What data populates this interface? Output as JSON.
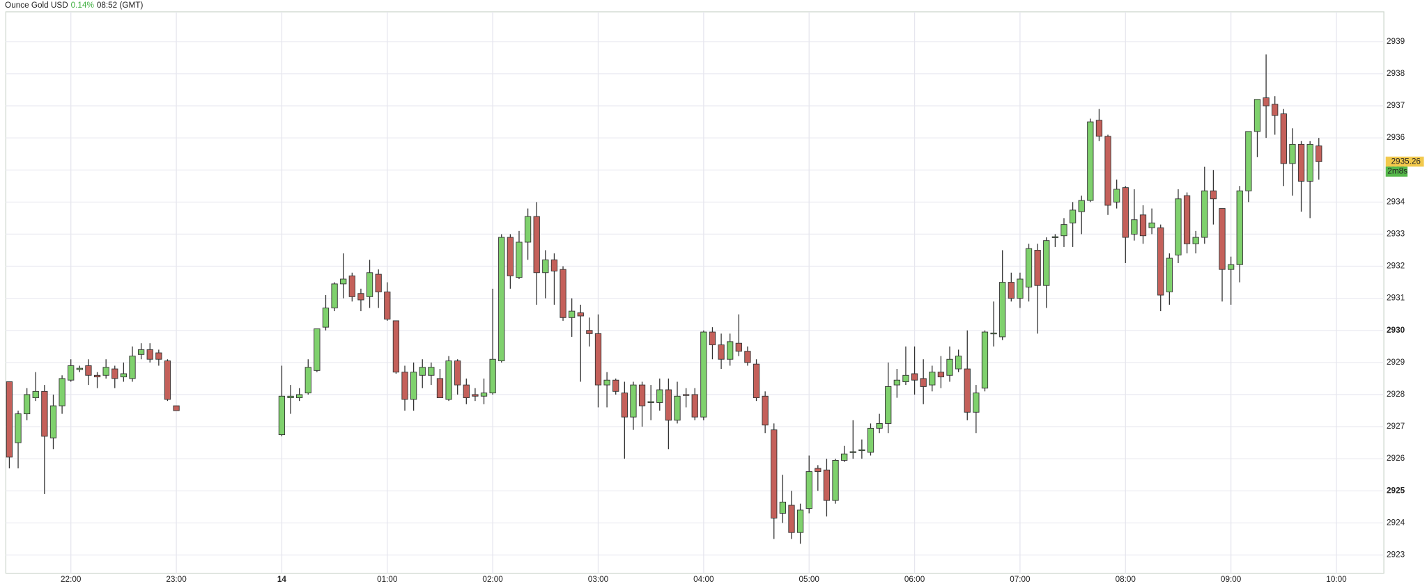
{
  "chart_data": {
    "type": "candlestick",
    "title": "Ounce Gold USD",
    "change": "0.14%",
    "time": "08:52 (GMT)",
    "last_price": 2935.26,
    "countdown": "2m8s",
    "up_color": "#7fd16d",
    "down_color": "#c4605a",
    "change_color": "#3fae3f",
    "grid": true,
    "x": [
      "21:25",
      "21:30",
      "21:35",
      "21:40",
      "21:45",
      "21:50",
      "21:55",
      "22:00",
      "22:05",
      "22:10",
      "22:15",
      "22:20",
      "22:25",
      "22:30",
      "22:35",
      "22:40",
      "22:45",
      "22:50",
      "22:55",
      "23:00",
      "00:00",
      "00:05",
      "00:10",
      "00:15",
      "00:20",
      "00:25",
      "00:30",
      "00:35",
      "00:40",
      "00:45",
      "00:50",
      "00:55",
      "01:00",
      "01:05",
      "01:10",
      "01:15",
      "01:20",
      "01:25",
      "01:30",
      "01:35",
      "01:40",
      "01:45",
      "01:50",
      "01:55",
      "02:00",
      "02:05",
      "02:10",
      "02:15",
      "02:20",
      "02:25",
      "02:30",
      "02:35",
      "02:40",
      "02:45",
      "02:50",
      "02:55",
      "03:00",
      "03:05",
      "03:10",
      "03:15",
      "03:20",
      "03:25",
      "03:30",
      "03:35",
      "03:40",
      "03:45",
      "03:50",
      "03:55",
      "04:00",
      "04:05",
      "04:10",
      "04:15",
      "04:20",
      "04:25",
      "04:30",
      "04:35",
      "04:40",
      "04:45",
      "04:50",
      "04:55",
      "05:00",
      "05:05",
      "05:10",
      "05:15",
      "05:20",
      "05:25",
      "05:30",
      "05:35",
      "05:40",
      "05:45",
      "05:50",
      "05:55",
      "06:00",
      "06:05",
      "06:10",
      "06:15",
      "06:20",
      "06:25",
      "06:30",
      "06:35",
      "06:40",
      "06:45",
      "06:50",
      "06:55",
      "07:00",
      "07:05",
      "07:10",
      "07:15",
      "07:20",
      "07:25",
      "07:30",
      "07:35",
      "07:40",
      "07:45",
      "07:50",
      "07:55",
      "08:00",
      "08:05",
      "08:10",
      "08:15",
      "08:20",
      "08:25",
      "08:30",
      "08:35",
      "08:40",
      "08:45",
      "08:50",
      "08:55",
      "09:00",
      "09:05",
      "09:10",
      "09:15",
      "09:20",
      "09:25",
      "09:30",
      "09:35",
      "09:40",
      "09:45",
      "09:50"
    ],
    "open": [
      2928.4,
      2926.5,
      2927.4,
      2927.9,
      2928.1,
      2926.65,
      2927.65,
      2928.45,
      2928.78,
      2928.9,
      2928.6,
      2928.6,
      2928.8,
      2928.55,
      2928.5,
      2929.25,
      2929.4,
      2929.3,
      2929.05,
      2927.65,
      2926.75,
      2927.9,
      2927.9,
      2928.05,
      2928.75,
      2930.1,
      2930.7,
      2931.45,
      2931.7,
      2931.15,
      2931.05,
      2931.75,
      2931.2,
      2930.3,
      2928.7,
      2927.85,
      2928.6,
      2928.6,
      2928.5,
      2927.85,
      2929.05,
      2928.3,
      2928.0,
      2927.95,
      2928.05,
      2929.05,
      2932.9,
      2931.65,
      2932.75,
      2933.55,
      2931.8,
      2932.2,
      2931.9,
      2930.4,
      2930.55,
      2930.0,
      2929.9,
      2928.3,
      2928.45,
      2928.05,
      2927.3,
      2928.3,
      2927.75,
      2927.75,
      2928.15,
      2927.2,
      2928.0,
      2928.0,
      2927.3,
      2929.95,
      2929.55,
      2929.1,
      2929.6,
      2929.35,
      2928.95,
      2927.95,
      2926.9,
      2924.3,
      2924.55,
      2923.7,
      2924.45,
      2925.7,
      2925.65,
      2924.7,
      2925.95,
      2926.2,
      2926.25,
      2926.2,
      2926.95,
      2927.1,
      2928.3,
      2928.4,
      2928.65,
      2928.5,
      2928.3,
      2928.7,
      2928.6,
      2928.8,
      2928.8,
      2927.45,
      2928.2,
      2929.9,
      2929.8,
      2931.5,
      2931.0,
      2931.35,
      2932.5,
      2931.4,
      2932.9,
      2932.95,
      2933.35,
      2933.7,
      2934.05,
      2936.55,
      2936.05,
      2934.0,
      2934.45,
      2933.0,
      2933.6,
      2933.2,
      2933.2,
      2931.2,
      2932.35,
      2934.2,
      2932.7,
      2932.9,
      2934.35,
      2933.8,
      2931.9,
      2932.05,
      2934.35,
      2936.2,
      2937.25,
      2937.05,
      2936.75,
      2935.2,
      2935.8,
      2934.65,
      2935.75
    ],
    "high": [
      2928.4,
      2927.5,
      2928.2,
      2928.7,
      2928.3,
      2928.0,
      2928.6,
      2929.1,
      2928.9,
      2929.1,
      2928.7,
      2929.1,
      2928.9,
      2929.0,
      2929.5,
      2929.6,
      2929.6,
      2929.4,
      2929.1,
      2927.65,
      2928.9,
      2928.3,
      2928.2,
      2929.1,
      2930.05,
      2931.1,
      2931.5,
      2932.4,
      2931.8,
      2931.3,
      2932.2,
      2931.9,
      2931.5,
      2930.3,
      2928.9,
      2929.0,
      2929.1,
      2929.0,
      2928.8,
      2929.2,
      2929.1,
      2928.5,
      2928.2,
      2928.5,
      2931.3,
      2933.0,
      2933.0,
      2933.1,
      2933.8,
      2934.0,
      2932.5,
      2932.4,
      2932.0,
      2931.0,
      2930.8,
      2930.4,
      2930.5,
      2928.7,
      2928.5,
      2928.4,
      2928.4,
      2928.4,
      2928.3,
      2928.5,
      2928.5,
      2928.4,
      2928.2,
      2928.2,
      2930.0,
      2930.1,
      2929.9,
      2929.9,
      2930.5,
      2929.5,
      2929.1,
      2928.1,
      2927.1,
      2925.5,
      2925.0,
      2924.6,
      2926.1,
      2925.8,
      2926.0,
      2926.0,
      2926.4,
      2927.2,
      2926.6,
      2927.1,
      2927.4,
      2929.0,
      2928.8,
      2929.5,
      2929.5,
      2929.1,
      2928.9,
      2929.2,
      2929.5,
      2929.4,
      2930.0,
      2928.3,
      2930.0,
      2930.9,
      2932.5,
      2931.8,
      2931.8,
      2932.7,
      2932.7,
      2932.9,
      2933.0,
      2933.5,
      2934.0,
      2934.2,
      2936.6,
      2936.9,
      2936.1,
      2934.7,
      2934.5,
      2934.4,
      2933.9,
      2933.8,
      2933.3,
      2932.4,
      2934.4,
      2934.3,
      2933.1,
      2935.1,
      2935.0,
      2933.8,
      2932.3,
      2934.5,
      2936.2,
      2937.2,
      2938.6,
      2937.3,
      2936.9,
      2936.3,
      2935.9,
      2935.9,
      2936.0
    ],
    "low": [
      2925.7,
      2925.7,
      2927.2,
      2927.8,
      2924.9,
      2926.3,
      2927.4,
      2928.4,
      2928.7,
      2928.3,
      2928.2,
      2928.5,
      2928.2,
      2928.4,
      2928.4,
      2929.1,
      2929.0,
      2928.9,
      2927.8,
      2927.5,
      2926.7,
      2927.4,
      2927.8,
      2928.0,
      2928.7,
      2930.0,
      2930.6,
      2931.0,
      2930.9,
      2930.6,
      2930.7,
      2930.7,
      2930.3,
      2928.65,
      2927.5,
      2927.5,
      2928.2,
      2928.3,
      2927.9,
      2927.8,
      2928.0,
      2927.7,
      2927.8,
      2927.7,
      2928.0,
      2929.0,
      2931.3,
      2931.6,
      2932.2,
      2930.8,
      2931.0,
      2930.8,
      2930.3,
      2929.8,
      2928.4,
      2929.5,
      2927.6,
      2927.6,
      2928.0,
      2926.0,
      2926.9,
      2927.0,
      2927.2,
      2927.5,
      2926.3,
      2927.1,
      2927.6,
      2927.2,
      2927.2,
      2929.1,
      2928.8,
      2928.9,
      2929.2,
      2928.9,
      2927.8,
      2926.8,
      2923.5,
      2924.0,
      2923.5,
      2923.35,
      2924.3,
      2925.0,
      2924.2,
      2924.6,
      2925.9,
      2926.0,
      2926.0,
      2926.1,
      2926.8,
      2926.8,
      2927.9,
      2928.3,
      2928.0,
      2927.7,
      2928.1,
      2928.2,
      2928.4,
      2928.7,
      2927.2,
      2926.8,
      2928.1,
      2929.5,
      2929.7,
      2930.9,
      2930.7,
      2930.9,
      2929.9,
      2930.7,
      2932.6,
      2932.6,
      2932.6,
      2933.0,
      2934.0,
      2935.9,
      2933.6,
      2933.8,
      2932.1,
      2932.8,
      2932.7,
      2933.0,
      2930.6,
      2930.8,
      2932.1,
      2932.4,
      2932.4,
      2932.7,
      2933.3,
      2930.9,
      2930.8,
      2931.5,
      2934.0,
      2935.4,
      2936.0,
      2936.1,
      2934.5,
      2934.2,
      2933.7,
      2933.5,
      2934.7
    ],
    "close": [
      2926.05,
      2927.4,
      2928.0,
      2928.1,
      2926.7,
      2927.65,
      2928.5,
      2928.9,
      2928.82,
      2928.6,
      2928.55,
      2928.85,
      2928.5,
      2928.65,
      2929.2,
      2929.4,
      2929.1,
      2929.1,
      2927.85,
      2927.5,
      2927.95,
      2927.95,
      2928.0,
      2928.85,
      2930.05,
      2930.7,
      2931.45,
      2931.6,
      2931.05,
      2930.95,
      2931.8,
      2931.2,
      2930.35,
      2928.7,
      2927.85,
      2928.7,
      2928.85,
      2928.85,
      2927.9,
      2929.05,
      2928.3,
      2927.9,
      2927.95,
      2928.05,
      2929.1,
      2932.9,
      2931.7,
      2932.75,
      2933.55,
      2931.8,
      2932.2,
      2931.85,
      2930.4,
      2930.6,
      2930.45,
      2929.9,
      2928.3,
      2928.45,
      2928.1,
      2927.3,
      2928.3,
      2927.65,
      2927.78,
      2928.15,
      2927.2,
      2927.95,
      2927.98,
      2927.3,
      2929.95,
      2929.55,
      2929.1,
      2929.65,
      2929.35,
      2929.0,
      2927.9,
      2927.05,
      2924.15,
      2924.65,
      2923.7,
      2924.4,
      2925.6,
      2925.6,
      2924.7,
      2925.95,
      2926.15,
      2926.22,
      2926.28,
      2926.95,
      2927.1,
      2928.25,
      2928.45,
      2928.6,
      2928.45,
      2928.25,
      2928.7,
      2928.55,
      2929.1,
      2929.2,
      2927.45,
      2928.05,
      2929.95,
      2929.92,
      2931.5,
      2931.0,
      2931.6,
      2932.55,
      2931.4,
      2932.8,
      2932.92,
      2933.3,
      2933.75,
      2934.05,
      2936.5,
      2936.05,
      2933.9,
      2934.4,
      2932.9,
      2933.45,
      2932.95,
      2933.35,
      2931.1,
      2932.25,
      2934.1,
      2932.7,
      2932.9,
      2934.35,
      2934.1,
      2931.9,
      2932.05,
      2934.35,
      2936.2,
      2937.2,
      2937.0,
      2936.7,
      2935.2,
      2935.8,
      2934.65,
      2935.8,
      2935.26
    ],
    "xlim": [
      "21:23",
      "10:27"
    ],
    "xticks": [
      "22:00",
      "23:00",
      {
        "value": "00:00",
        "label": "14"
      },
      "01:00",
      "02:00",
      "03:00",
      "04:00",
      "05:00",
      "06:00",
      "07:00",
      "08:00",
      "09:00",
      "10:00"
    ],
    "xticks_bold": [
      "00:00"
    ],
    "ylim": [
      2922.43,
      2939.93
    ],
    "yticks": [
      2923,
      2924,
      2925,
      2926,
      2927,
      2928,
      2929,
      2930,
      2931,
      2932,
      2933,
      2934,
      2935,
      2936,
      2937,
      2938,
      2939
    ],
    "yticks_bold": [
      2925,
      2930
    ]
  }
}
